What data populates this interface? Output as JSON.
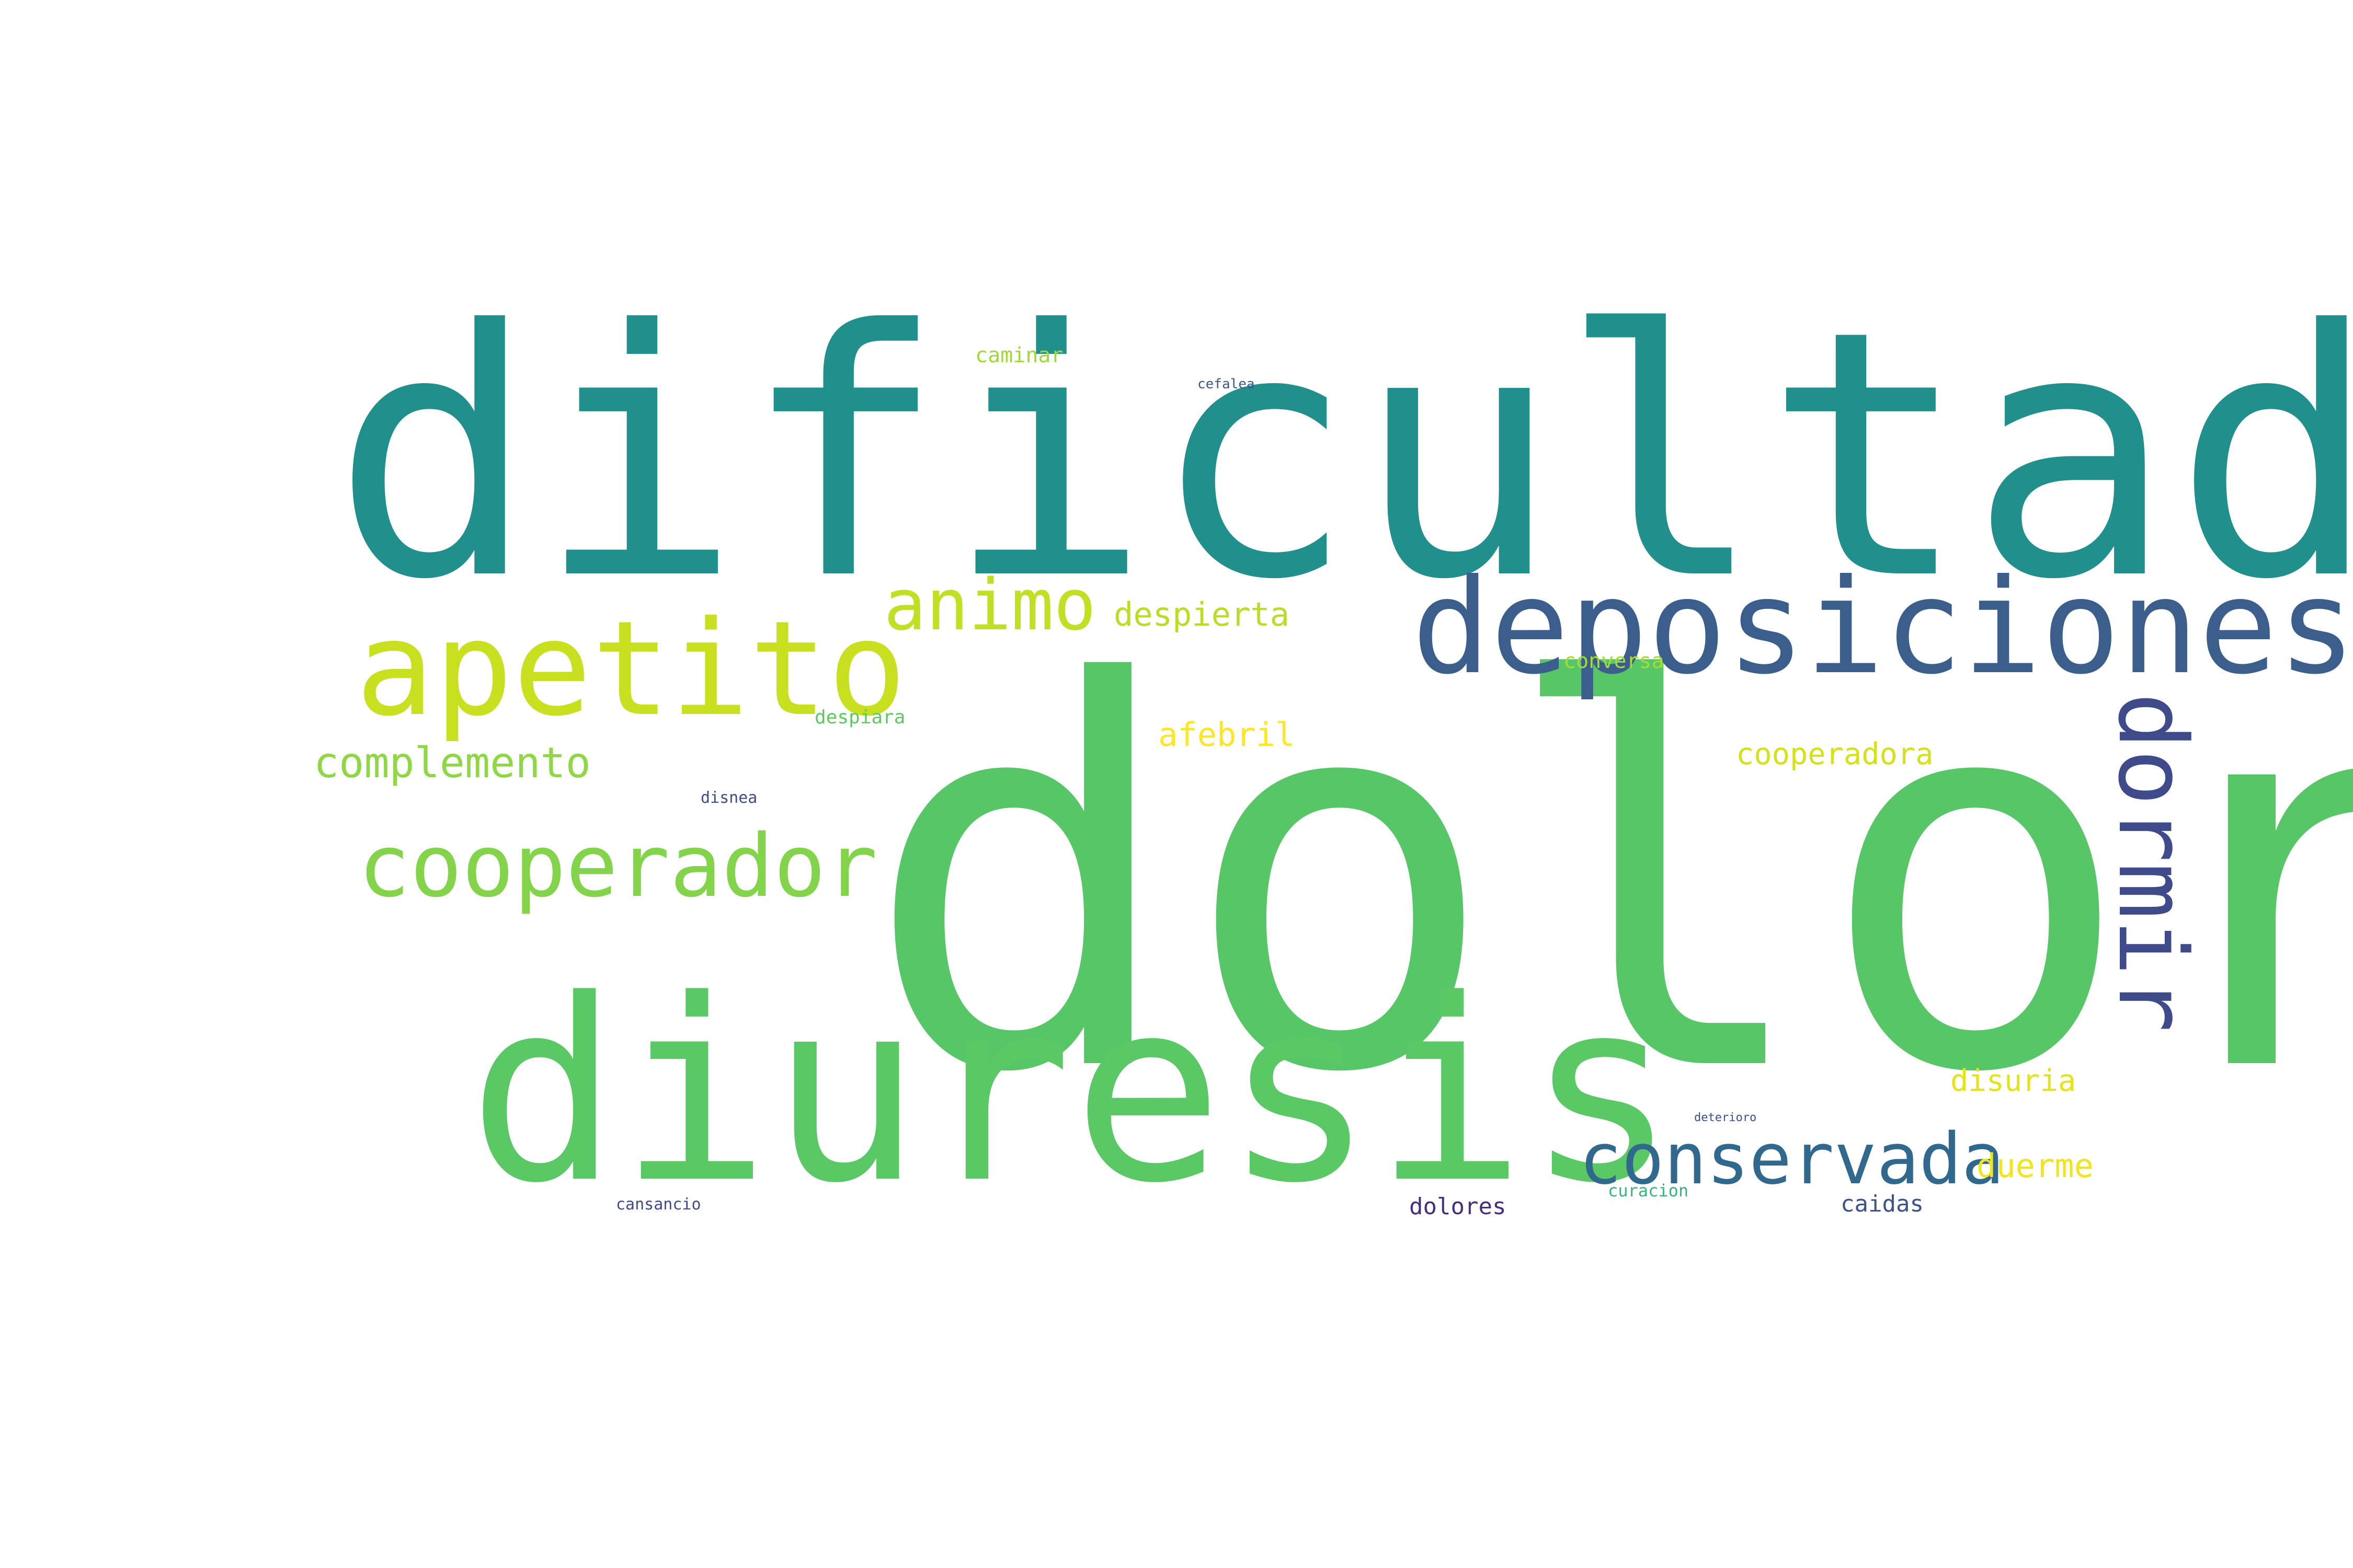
{
  "words": [
    {
      "text": "dificultad",
      "color": "#21908c"
    },
    {
      "text": "dolor",
      "color": "#56c667"
    },
    {
      "text": "diuresis",
      "color": "#5ac864"
    },
    {
      "text": "deposiciones",
      "color": "#3b5e8c"
    },
    {
      "text": "apetito",
      "color": "#c8e020"
    },
    {
      "text": "dormir",
      "color": "#3f4a8a"
    },
    {
      "text": "cooperador",
      "color": "#84d44b"
    },
    {
      "text": "animo",
      "color": "#c2df23"
    },
    {
      "text": "conservada",
      "color": "#31688e"
    },
    {
      "text": "complemento",
      "color": "#8fd744"
    },
    {
      "text": "despierta",
      "color": "#bade28"
    },
    {
      "text": "afebril",
      "color": "#fde725"
    },
    {
      "text": "cooperadora",
      "color": "#d5e21a"
    },
    {
      "text": "duerme",
      "color": "#f1e51d"
    },
    {
      "text": "disuria",
      "color": "#e5e419"
    },
    {
      "text": "conversa",
      "color": "#a5db36"
    },
    {
      "text": "caminar",
      "color": "#a0da39"
    },
    {
      "text": "cefalea",
      "color": "#38598c"
    },
    {
      "text": "despiara",
      "color": "#5ec962"
    },
    {
      "text": "disnea",
      "color": "#3e4c8a"
    },
    {
      "text": "cansancio",
      "color": "#3e4a89"
    },
    {
      "text": "dolores",
      "color": "#472d7b"
    },
    {
      "text": "curacion",
      "color": "#35b779"
    },
    {
      "text": "caidas",
      "color": "#3b528b"
    },
    {
      "text": "deterioro",
      "color": "#3b518b"
    }
  ]
}
